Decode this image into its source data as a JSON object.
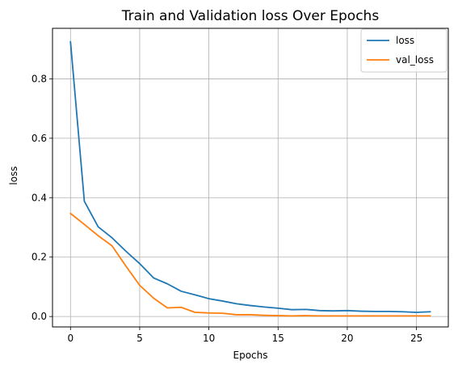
{
  "chart_data": {
    "type": "line",
    "title": "Train and Validation loss Over Epochs",
    "xlabel": "Epochs",
    "ylabel": "loss",
    "xlim": [
      -1.3,
      27.3
    ],
    "ylim": [
      -0.035,
      0.97
    ],
    "xticks": [
      0,
      5,
      10,
      15,
      20,
      25
    ],
    "yticks": [
      0.0,
      0.2,
      0.4,
      0.6,
      0.8
    ],
    "ytick_labels": [
      "0.0",
      "0.2",
      "0.4",
      "0.6",
      "0.8"
    ],
    "grid": true,
    "legend_position": "top-right",
    "x": [
      0,
      1,
      2,
      3,
      4,
      5,
      6,
      7,
      8,
      9,
      10,
      11,
      12,
      13,
      14,
      15,
      16,
      17,
      18,
      19,
      20,
      21,
      22,
      23,
      24,
      25,
      26
    ],
    "series": [
      {
        "name": "loss",
        "color": "#1f77b4",
        "values": [
          0.925,
          0.388,
          0.302,
          0.265,
          0.22,
          0.178,
          0.13,
          0.11,
          0.085,
          0.073,
          0.06,
          0.052,
          0.043,
          0.037,
          0.032,
          0.028,
          0.023,
          0.024,
          0.02,
          0.019,
          0.02,
          0.018,
          0.017,
          0.017,
          0.016,
          0.014,
          0.016
        ]
      },
      {
        "name": "val_loss",
        "color": "#ff7f0e",
        "values": [
          0.347,
          0.31,
          0.272,
          0.238,
          0.17,
          0.105,
          0.062,
          0.029,
          0.031,
          0.014,
          0.012,
          0.011,
          0.006,
          0.006,
          0.004,
          0.003,
          0.002,
          0.003,
          0.002,
          0.002,
          0.002,
          0.002,
          0.002,
          0.002,
          0.002,
          0.002,
          0.002
        ]
      }
    ]
  }
}
